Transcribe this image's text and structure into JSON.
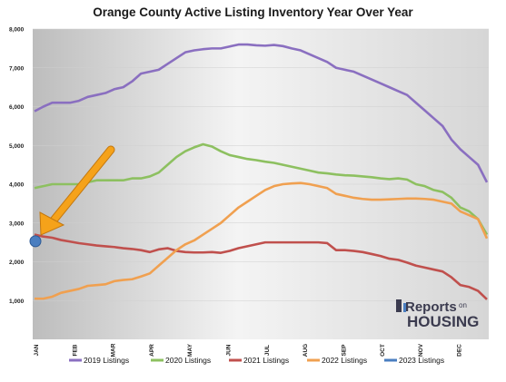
{
  "chart_data": {
    "type": "line",
    "title": "Orange County Active Listing Inventory Year Over Year",
    "xlabel": "",
    "ylabel": "",
    "ylim": [
      0,
      8000
    ],
    "yticks": [
      "1,000",
      "2,000",
      "3,000",
      "4,000",
      "5,000",
      "6,000",
      "7,000",
      "8,000"
    ],
    "month_labels": [
      "JAN",
      "FEB",
      "MAR",
      "APR",
      "MAY",
      "JUN",
      "JUL",
      "AUG",
      "SEP",
      "OCT",
      "NOV",
      "DEC"
    ],
    "x_weeks": [
      0,
      1,
      2,
      3,
      4,
      5,
      6,
      7,
      8,
      9,
      10,
      11,
      12,
      13,
      14,
      15,
      16,
      17,
      18,
      19,
      20,
      21,
      22,
      23,
      24,
      25,
      26,
      27,
      28,
      29,
      30,
      31,
      32,
      33,
      34,
      35,
      36,
      37,
      38,
      39,
      40,
      41,
      42,
      43,
      44,
      45,
      46,
      47,
      48,
      49,
      50,
      51
    ],
    "grid": true,
    "legend_position": "bottom",
    "series": [
      {
        "name": "2019 Listings",
        "color": "#8a6fc0",
        "values": [
          5880,
          6000,
          6100,
          6100,
          6100,
          6150,
          6250,
          6300,
          6350,
          6450,
          6500,
          6650,
          6850,
          6900,
          6950,
          7100,
          7250,
          7400,
          7450,
          7480,
          7500,
          7500,
          7550,
          7600,
          7600,
          7580,
          7570,
          7590,
          7560,
          7500,
          7450,
          7350,
          7250,
          7150,
          7000,
          6950,
          6900,
          6800,
          6700,
          6600,
          6500,
          6400,
          6300,
          6100,
          5900,
          5700,
          5500,
          5150,
          4900,
          4700,
          4500,
          4050
        ]
      },
      {
        "name": "2020 Listings",
        "color": "#8dc060",
        "values": [
          3900,
          3950,
          4000,
          4000,
          4000,
          4000,
          4050,
          4100,
          4100,
          4100,
          4100,
          4150,
          4150,
          4200,
          4300,
          4500,
          4700,
          4850,
          4950,
          5030,
          4970,
          4850,
          4750,
          4700,
          4650,
          4620,
          4580,
          4550,
          4500,
          4450,
          4400,
          4350,
          4300,
          4280,
          4250,
          4230,
          4220,
          4200,
          4180,
          4150,
          4130,
          4150,
          4120,
          4000,
          3950,
          3850,
          3800,
          3650,
          3400,
          3300,
          3100,
          2700
        ]
      },
      {
        "name": "2021 Listings",
        "color": "#c0504d",
        "values": [
          2700,
          2650,
          2620,
          2560,
          2520,
          2480,
          2450,
          2420,
          2400,
          2380,
          2350,
          2330,
          2300,
          2250,
          2320,
          2350,
          2280,
          2250,
          2240,
          2240,
          2250,
          2230,
          2280,
          2350,
          2400,
          2450,
          2500,
          2500,
          2500,
          2500,
          2500,
          2500,
          2500,
          2480,
          2300,
          2300,
          2280,
          2250,
          2200,
          2150,
          2080,
          2050,
          1980,
          1900,
          1850,
          1800,
          1750,
          1600,
          1400,
          1350,
          1250,
          1030
        ]
      },
      {
        "name": "2022 Listings",
        "color": "#f0a050",
        "values": [
          1050,
          1050,
          1100,
          1200,
          1250,
          1300,
          1380,
          1400,
          1420,
          1500,
          1530,
          1550,
          1620,
          1700,
          1900,
          2100,
          2300,
          2450,
          2550,
          2700,
          2850,
          3000,
          3200,
          3400,
          3550,
          3700,
          3850,
          3950,
          4000,
          4020,
          4030,
          4000,
          3950,
          3900,
          3750,
          3700,
          3650,
          3620,
          3600,
          3600,
          3610,
          3620,
          3630,
          3630,
          3620,
          3600,
          3550,
          3500,
          3300,
          3200,
          3100,
          2600
        ]
      },
      {
        "name": "2023 Listings",
        "color": "#4a7ec0",
        "values": [
          2530
        ]
      }
    ],
    "annotations": [
      {
        "type": "arrow",
        "points_to": "2023 Listings",
        "color": "#f5a21a"
      }
    ]
  },
  "logo": {
    "text_reports": "Reports",
    "text_on": "on",
    "text_housing": "HOUSING"
  }
}
